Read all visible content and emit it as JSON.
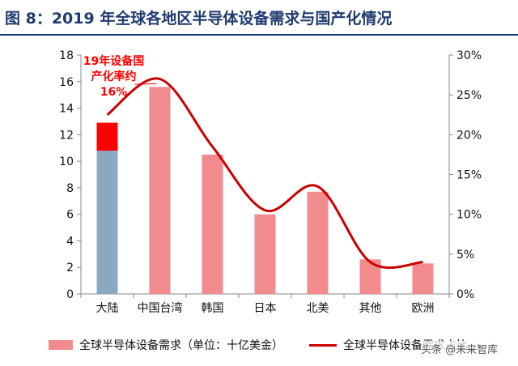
{
  "header": {
    "title": "图 8：2019 年全球各地区半导体设备需求与国产化情况"
  },
  "annotation": {
    "lines": [
      "19年设备国",
      "产化率约",
      "16%"
    ]
  },
  "legend": {
    "bar_label": "全球半导体设备需求（单位：十亿美金）",
    "line_label": "全球半导体设备需求占比"
  },
  "watermark": {
    "text": "头条 @未来智库"
  },
  "colors": {
    "bar": "#f28b8d",
    "bar_first": "#8aa9c1",
    "domestic": "#ff0000",
    "line": "#cc0000",
    "axis": "#888888",
    "title": "#1f3b70"
  },
  "chart_data": {
    "type": "bar",
    "categories": [
      "大陆",
      "中国台湾",
      "韩国",
      "日本",
      "北美",
      "其他",
      "欧洲"
    ],
    "series": [
      {
        "name": "全球半导体设备需求（单位：十亿美金）",
        "type": "bar",
        "axis": "left",
        "values": [
          12.9,
          15.6,
          10.5,
          6.0,
          7.7,
          2.6,
          2.3
        ]
      },
      {
        "name": "全球半导体设备需求占比",
        "type": "line",
        "axis": "right",
        "values": [
          22.5,
          27.0,
          18.5,
          10.5,
          13.5,
          4.0,
          4.0
        ]
      }
    ],
    "domestic_share": {
      "category": "大陆",
      "value": 2.1
    },
    "y_left": {
      "min": 0,
      "max": 18,
      "ticks": [
        0,
        2,
        4,
        6,
        8,
        10,
        12,
        14,
        16,
        18
      ]
    },
    "y_right": {
      "min": 0,
      "max": 30,
      "ticks": [
        0,
        5,
        10,
        15,
        20,
        25,
        30
      ],
      "unit": "%"
    },
    "grid": false
  }
}
